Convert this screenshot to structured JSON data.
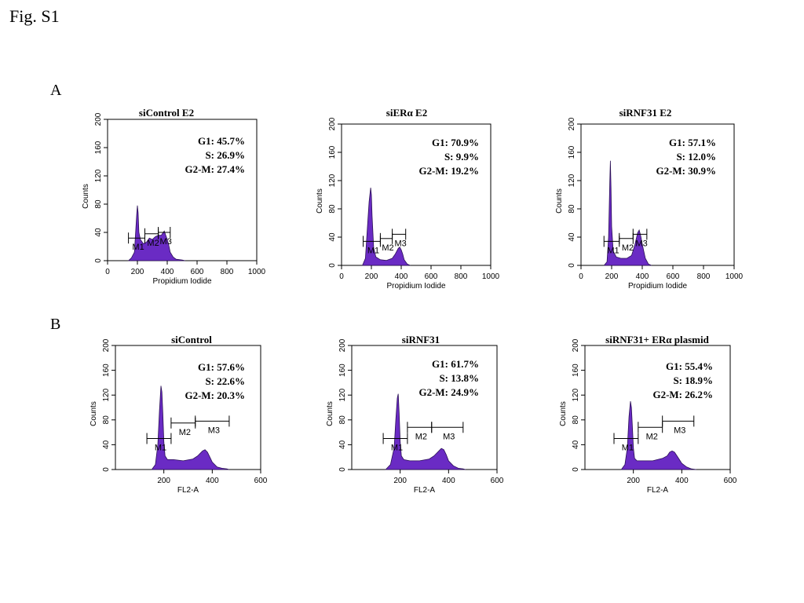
{
  "figure": {
    "title": "Fig. S1",
    "panel_a_label": "A",
    "panel_b_label": "B"
  },
  "colors": {
    "histogram_fill": "#6a2bc4",
    "histogram_edge": "#2a0f55",
    "frame": "#000000"
  },
  "chart_data": [
    {
      "type": "area",
      "title": "siControl E2",
      "xlabel": "Propidium Iodide",
      "ylabel": "Counts",
      "xlim": [
        0,
        1000
      ],
      "ylim": [
        0,
        200
      ],
      "x_ticks": [
        0,
        200,
        400,
        600,
        800,
        1000
      ],
      "y_ticks": [
        0,
        40,
        80,
        120,
        160,
        200
      ],
      "stats": [
        {
          "label": "G1: 45.7%"
        },
        {
          "label": "S: 26.9%"
        },
        {
          "label": "G2-M: 27.4%"
        }
      ],
      "markers": [
        {
          "name": "M1",
          "range": [
            140,
            250
          ],
          "y": 32
        },
        {
          "name": "M2",
          "range": [
            250,
            340
          ],
          "y": 38
        },
        {
          "name": "M3",
          "range": [
            340,
            420
          ],
          "y": 40
        }
      ],
      "x": [
        140,
        160,
        180,
        195,
        200,
        205,
        210,
        220,
        240,
        260,
        280,
        300,
        320,
        340,
        360,
        380,
        400,
        410,
        420,
        440,
        460,
        500,
        520
      ],
      "y": [
        0,
        4,
        12,
        65,
        78,
        68,
        40,
        30,
        24,
        26,
        32,
        30,
        34,
        36,
        36,
        42,
        30,
        22,
        12,
        5,
        2,
        1,
        0
      ]
    },
    {
      "type": "area",
      "title": "siERα E2",
      "xlabel": "Propidium Iodide",
      "ylabel": "Counts",
      "xlim": [
        0,
        1000
      ],
      "ylim": [
        0,
        200
      ],
      "x_ticks": [
        0,
        200,
        400,
        600,
        800,
        1000
      ],
      "y_ticks": [
        0,
        40,
        80,
        120,
        160,
        200
      ],
      "stats": [
        {
          "label": "G1: 70.9%"
        },
        {
          "label": "S: 9.9%"
        },
        {
          "label": "G2-M: 19.2%"
        }
      ],
      "markers": [
        {
          "name": "M1",
          "range": [
            145,
            260
          ],
          "y": 34
        },
        {
          "name": "M2",
          "range": [
            260,
            340
          ],
          "y": 38
        },
        {
          "name": "M3",
          "range": [
            340,
            430
          ],
          "y": 44
        }
      ],
      "x": [
        140,
        160,
        175,
        185,
        195,
        200,
        205,
        215,
        230,
        260,
        300,
        340,
        360,
        380,
        390,
        400,
        410,
        420,
        440,
        460
      ],
      "y": [
        0,
        10,
        60,
        90,
        110,
        100,
        70,
        25,
        12,
        8,
        7,
        10,
        16,
        24,
        26,
        22,
        16,
        8,
        2,
        0
      ]
    },
    {
      "type": "area",
      "title": "siRNF31 E2",
      "xlabel": "Propidium Iodide",
      "ylabel": "Counts",
      "xlim": [
        0,
        1000
      ],
      "ylim": [
        0,
        200
      ],
      "x_ticks": [
        0,
        200,
        400,
        600,
        800,
        1000
      ],
      "y_ticks": [
        0,
        40,
        80,
        120,
        160,
        200
      ],
      "stats": [
        {
          "label": "G1: 57.1%"
        },
        {
          "label": "S: 12.0%"
        },
        {
          "label": "G2-M: 30.9%"
        }
      ],
      "markers": [
        {
          "name": "M1",
          "range": [
            150,
            250
          ],
          "y": 34
        },
        {
          "name": "M2",
          "range": [
            250,
            340
          ],
          "y": 38
        },
        {
          "name": "M3",
          "range": [
            340,
            430
          ],
          "y": 44
        }
      ],
      "x": [
        150,
        170,
        180,
        188,
        192,
        196,
        200,
        210,
        230,
        260,
        300,
        330,
        350,
        370,
        380,
        390,
        400,
        420,
        440,
        460
      ],
      "y": [
        0,
        5,
        40,
        120,
        148,
        110,
        55,
        20,
        12,
        10,
        10,
        14,
        28,
        46,
        50,
        42,
        30,
        10,
        2,
        0
      ]
    },
    {
      "type": "area",
      "title": "siControl",
      "xlabel": "FL2-A",
      "ylabel": "Counts",
      "xlim": [
        0,
        600
      ],
      "ylim": [
        0,
        200
      ],
      "x_ticks": [
        200,
        400,
        600
      ],
      "y_ticks": [
        0,
        40,
        80,
        120,
        160,
        200
      ],
      "stats": [
        {
          "label": "G1: 57.6%"
        },
        {
          "label": "S: 22.6%"
        },
        {
          "label": "G2-M: 20.3%"
        }
      ],
      "markers": [
        {
          "name": "M1",
          "range": [
            130,
            230
          ],
          "y": 50
        },
        {
          "name": "M2",
          "range": [
            230,
            330
          ],
          "y": 75
        },
        {
          "name": "M3",
          "range": [
            330,
            470
          ],
          "y": 78
        }
      ],
      "x": [
        150,
        165,
        175,
        182,
        188,
        192,
        196,
        200,
        205,
        215,
        240,
        280,
        320,
        340,
        360,
        370,
        380,
        390,
        400,
        420,
        440,
        460,
        470
      ],
      "y": [
        0,
        8,
        40,
        95,
        135,
        125,
        90,
        45,
        22,
        16,
        16,
        14,
        17,
        22,
        30,
        32,
        28,
        20,
        12,
        4,
        2,
        1,
        0
      ]
    },
    {
      "type": "area",
      "title": "siRNF31",
      "xlabel": "FL2-A",
      "ylabel": "Counts",
      "xlim": [
        0,
        600
      ],
      "ylim": [
        0,
        200
      ],
      "x_ticks": [
        200,
        400,
        600
      ],
      "y_ticks": [
        0,
        40,
        80,
        120,
        160,
        200
      ],
      "stats": [
        {
          "label": "G1: 61.7%"
        },
        {
          "label": "S: 13.8%"
        },
        {
          "label": "G2-M: 24.9%"
        }
      ],
      "markers": [
        {
          "name": "M1",
          "range": [
            130,
            230
          ],
          "y": 50
        },
        {
          "name": "M2",
          "range": [
            230,
            330
          ],
          "y": 68
        },
        {
          "name": "M3",
          "range": [
            330,
            460
          ],
          "y": 68
        }
      ],
      "x": [
        140,
        160,
        175,
        182,
        188,
        192,
        196,
        200,
        205,
        215,
        240,
        280,
        320,
        340,
        360,
        370,
        380,
        390,
        400,
        420,
        440,
        460,
        470
      ],
      "y": [
        0,
        8,
        35,
        80,
        115,
        122,
        90,
        45,
        22,
        16,
        14,
        14,
        17,
        22,
        30,
        34,
        32,
        24,
        14,
        6,
        2,
        1,
        0
      ]
    },
    {
      "type": "area",
      "title": "siRNF31+ ERα plasmid",
      "xlabel": "FL2-A",
      "ylabel": "Counts",
      "xlim": [
        0,
        600
      ],
      "ylim": [
        0,
        200
      ],
      "x_ticks": [
        200,
        400,
        600
      ],
      "y_ticks": [
        0,
        40,
        80,
        120,
        160,
        200
      ],
      "stats": [
        {
          "label": "G1: 55.4%"
        },
        {
          "label": "S: 18.9%"
        },
        {
          "label": "G2-M: 26.2%"
        }
      ],
      "markers": [
        {
          "name": "M1",
          "range": [
            120,
            220
          ],
          "y": 50
        },
        {
          "name": "M2",
          "range": [
            220,
            320
          ],
          "y": 68
        },
        {
          "name": "M3",
          "range": [
            320,
            450
          ],
          "y": 78
        }
      ],
      "x": [
        150,
        165,
        175,
        182,
        188,
        192,
        196,
        200,
        205,
        215,
        240,
        280,
        320,
        340,
        350,
        360,
        370,
        380,
        390,
        400,
        420,
        440,
        460
      ],
      "y": [
        0,
        8,
        35,
        85,
        110,
        100,
        70,
        35,
        18,
        14,
        14,
        14,
        18,
        22,
        28,
        30,
        28,
        22,
        16,
        10,
        4,
        1,
        0
      ]
    }
  ]
}
